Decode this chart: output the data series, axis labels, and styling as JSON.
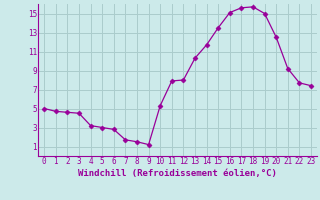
{
  "x": [
    0,
    1,
    2,
    3,
    4,
    5,
    6,
    7,
    8,
    9,
    10,
    11,
    12,
    13,
    14,
    15,
    16,
    17,
    18,
    19,
    20,
    21,
    22,
    23
  ],
  "y": [
    5.0,
    4.7,
    4.6,
    4.5,
    3.2,
    3.0,
    2.8,
    1.7,
    1.5,
    1.2,
    5.3,
    7.9,
    8.0,
    10.3,
    11.7,
    13.5,
    15.1,
    15.6,
    15.7,
    15.0,
    12.5,
    9.2,
    7.7,
    7.4
  ],
  "line_color": "#990099",
  "marker": "D",
  "marker_size": 2.5,
  "bg_color": "#cceaea",
  "grid_color": "#aacccc",
  "xlabel": "Windchill (Refroidissement éolien,°C)",
  "xlim": [
    -0.5,
    23.5
  ],
  "ylim": [
    0,
    16
  ],
  "yticks": [
    1,
    3,
    5,
    7,
    9,
    11,
    13,
    15
  ],
  "xticks": [
    0,
    1,
    2,
    3,
    4,
    5,
    6,
    7,
    8,
    9,
    10,
    11,
    12,
    13,
    14,
    15,
    16,
    17,
    18,
    19,
    20,
    21,
    22,
    23
  ],
  "tick_color": "#990099",
  "label_color": "#990099",
  "label_fontsize": 6.5,
  "tick_fontsize": 5.5
}
